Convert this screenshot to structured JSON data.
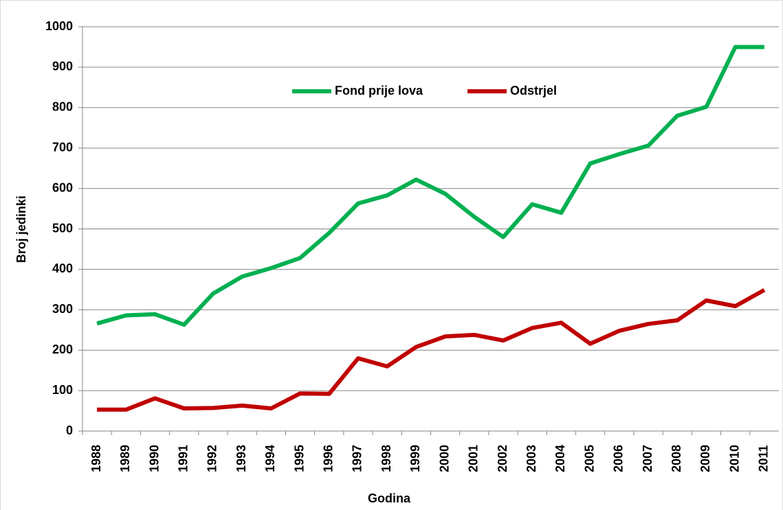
{
  "chart_data": {
    "type": "line",
    "x_label": "Godina",
    "y_label": "Broj jedinki",
    "categories": [
      "1988",
      "1989",
      "1990",
      "1991",
      "1992",
      "1993",
      "1994",
      "1995",
      "1996",
      "1997",
      "1998",
      "1999",
      "2000",
      "2001",
      "2002",
      "2003",
      "2004",
      "2005",
      "2006",
      "2007",
      "2008",
      "2009",
      "2010",
      "2011"
    ],
    "series": [
      {
        "name": "Fond prije lova",
        "color": "#00b050",
        "values": [
          266,
          286,
          289,
          263,
          340,
          382,
          403,
          428,
          490,
          563,
          583,
          622,
          587,
          530,
          480,
          561,
          540,
          662,
          685,
          706,
          780,
          802,
          950,
          950
        ]
      },
      {
        "name": "Odstrjel",
        "color": "#c00000",
        "values": [
          53,
          53,
          81,
          56,
          57,
          63,
          56,
          93,
          92,
          180,
          160,
          208,
          234,
          238,
          224,
          255,
          268,
          216,
          248,
          265,
          274,
          323,
          309,
          349
        ]
      }
    ],
    "ylim": [
      0,
      1000
    ],
    "yticks": [
      0,
      100,
      200,
      300,
      400,
      500,
      600,
      700,
      800,
      900,
      1000
    ],
    "grid": true,
    "legend": "top"
  }
}
